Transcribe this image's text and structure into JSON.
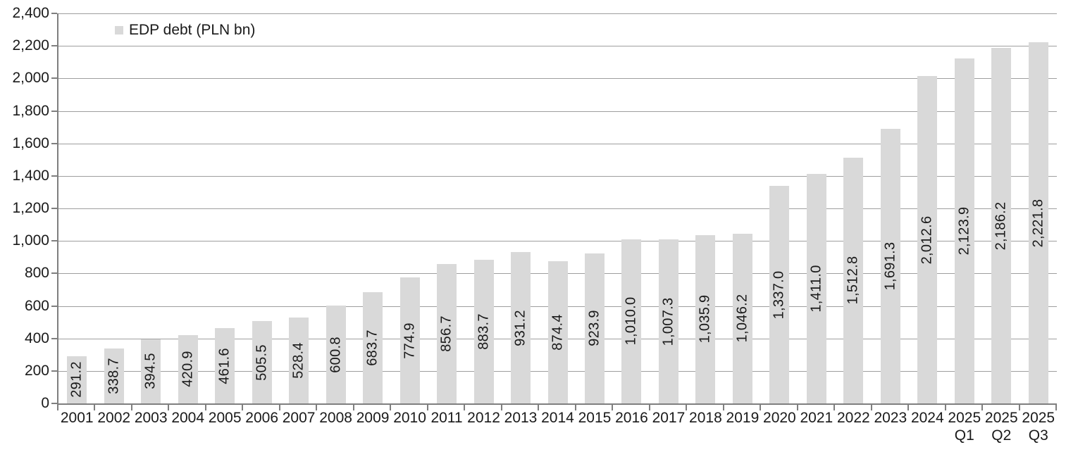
{
  "legend": {
    "label": "EDP debt (PLN bn)"
  },
  "colors": {
    "background": "#ffffff",
    "bar_fill": "#d9d9d9",
    "gridline": "#9e9e9e",
    "axis": "#7f7f7f",
    "text": "#1a1a1a",
    "legend_swatch": "#d9d9d9"
  },
  "y_axis": {
    "min": 0,
    "max": 2400,
    "step": 200,
    "tick_labels": [
      "2,400",
      "2,200",
      "2,000",
      "1,800",
      "1,600",
      "1,400",
      "1,200",
      "1,000",
      "800",
      "600",
      "400",
      "200",
      "0"
    ]
  },
  "chart_data": {
    "type": "bar",
    "title": "",
    "legend_entries": [
      "EDP debt (PLN bn)"
    ],
    "legend_position": "top-left-inside",
    "grid": "horizontal",
    "ylim": [
      0,
      2400
    ],
    "categories": [
      "2001",
      "2002",
      "2003",
      "2004",
      "2005",
      "2006",
      "2007",
      "2008",
      "2009",
      "2010",
      "2011",
      "2012",
      "2013",
      "2014",
      "2015",
      "2016",
      "2017",
      "2018",
      "2019",
      "2020",
      "2021",
      "2022",
      "2023",
      "2024",
      "2025 Q1",
      "2025 Q2",
      "2025 Q3"
    ],
    "category_label_lines": [
      [
        "2001"
      ],
      [
        "2002"
      ],
      [
        "2003"
      ],
      [
        "2004"
      ],
      [
        "2005"
      ],
      [
        "2006"
      ],
      [
        "2007"
      ],
      [
        "2008"
      ],
      [
        "2009"
      ],
      [
        "2010"
      ],
      [
        "2011"
      ],
      [
        "2012"
      ],
      [
        "2013"
      ],
      [
        "2014"
      ],
      [
        "2015"
      ],
      [
        "2016"
      ],
      [
        "2017"
      ],
      [
        "2018"
      ],
      [
        "2019"
      ],
      [
        "2020"
      ],
      [
        "2021"
      ],
      [
        "2022"
      ],
      [
        "2023"
      ],
      [
        "2024"
      ],
      [
        "2025",
        "Q1"
      ],
      [
        "2025",
        "Q2"
      ],
      [
        "2025",
        "Q3"
      ]
    ],
    "values": [
      291.2,
      338.7,
      394.5,
      420.9,
      461.6,
      505.5,
      528.4,
      600.8,
      683.7,
      774.9,
      856.7,
      883.7,
      931.2,
      874.4,
      923.9,
      1010.0,
      1007.3,
      1035.9,
      1046.2,
      1337.0,
      1411.0,
      1512.8,
      1691.3,
      2012.6,
      2123.9,
      2186.2,
      2221.8
    ],
    "value_labels": [
      "291.2",
      "338.7",
      "394.5",
      "420.9",
      "461.6",
      "505.5",
      "528.4",
      "600.8",
      "683.7",
      "774.9",
      "856.7",
      "883.7",
      "931.2",
      "874.4",
      "923.9",
      "1,010.0",
      "1,007.3",
      "1,035.9",
      "1,046.2",
      "1,337.0",
      "1,411.0",
      "1,512.8",
      "1,691.3",
      "2,012.6",
      "2,123.9",
      "2,186.2",
      "2,221.8"
    ],
    "series_name": "EDP debt (PLN bn)",
    "value_label_rotation_deg": -90,
    "value_label_placement": "inside-center"
  }
}
